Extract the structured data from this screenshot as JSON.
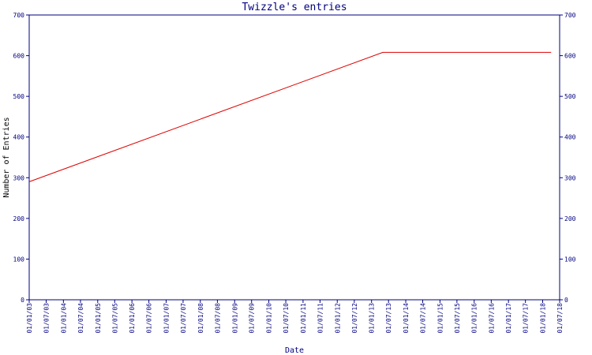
{
  "chart_data": {
    "type": "line",
    "title": "Twizzle's entries",
    "xlabel": "Date",
    "ylabel": "Number of Entries",
    "ylim": [
      0,
      700
    ],
    "yticks": [
      0,
      100,
      200,
      300,
      400,
      500,
      600,
      700
    ],
    "grid": false,
    "x_ticks": [
      "01/01/03",
      "01/07/03",
      "01/01/04",
      "01/07/04",
      "01/01/05",
      "01/07/05",
      "01/01/06",
      "01/07/06",
      "01/01/07",
      "01/07/07",
      "01/01/08",
      "01/07/08",
      "01/01/09",
      "01/07/09",
      "01/01/10",
      "01/07/10",
      "01/01/11",
      "01/07/11",
      "01/01/12",
      "01/07/12",
      "01/01/13",
      "01/07/13",
      "01/01/14",
      "01/07/14",
      "01/01/15",
      "01/07/15",
      "01/01/16",
      "01/07/16",
      "01/01/17",
      "01/07/17",
      "01/01/18",
      "01/07/18"
    ],
    "series": [
      {
        "color": "#dd0000",
        "points": [
          {
            "x": "01/01/03",
            "y": 290
          },
          {
            "x": "01/05/13",
            "y": 608
          },
          {
            "x": "01/04/18",
            "y": 608
          }
        ]
      }
    ],
    "colors": {
      "axis": "#000080",
      "line": "#dd0000",
      "background": "#ffffff"
    }
  }
}
